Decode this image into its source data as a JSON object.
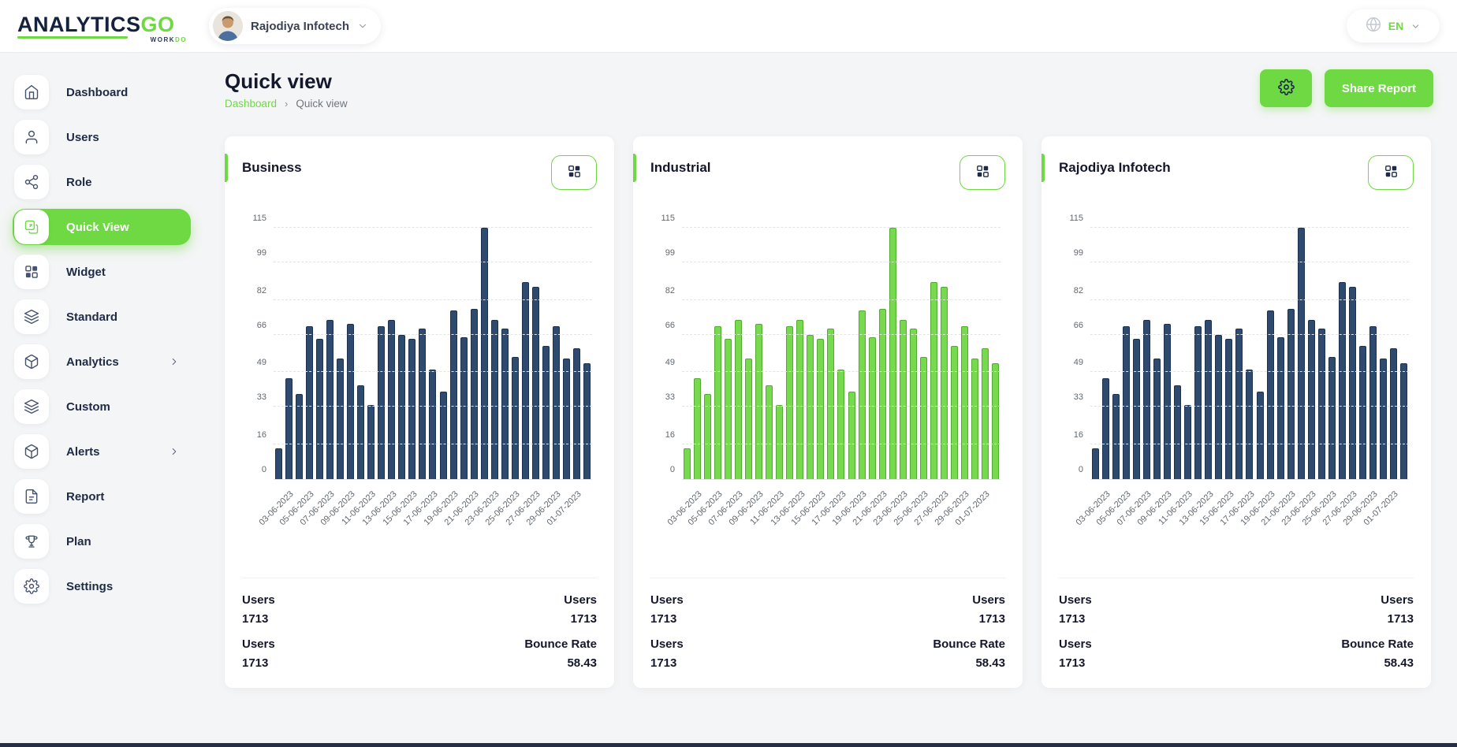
{
  "topbar": {
    "brand": {
      "name_primary": "ANALYTICS",
      "name_accent": "GO",
      "subbrand_primary": "WORK",
      "subbrand_accent": "DO"
    },
    "company_selector": {
      "name": "Rajodiya Infotech"
    },
    "language_selector": {
      "value": "EN"
    }
  },
  "sidebar": {
    "items": [
      {
        "label": "Dashboard",
        "icon": "home-icon",
        "active": false,
        "has_submenu": false
      },
      {
        "label": "Users",
        "icon": "user-icon",
        "active": false,
        "has_submenu": false
      },
      {
        "label": "Role",
        "icon": "share-icon",
        "active": false,
        "has_submenu": false
      },
      {
        "label": "Quick View",
        "icon": "quick-view-icon",
        "active": true,
        "has_submenu": false
      },
      {
        "label": "Widget",
        "icon": "widget-icon",
        "active": false,
        "has_submenu": false
      },
      {
        "label": "Standard",
        "icon": "layers-icon",
        "active": false,
        "has_submenu": false
      },
      {
        "label": "Analytics",
        "icon": "cube-icon",
        "active": false,
        "has_submenu": true
      },
      {
        "label": "Custom",
        "icon": "layers-icon",
        "active": false,
        "has_submenu": false
      },
      {
        "label": "Alerts",
        "icon": "cube-icon",
        "active": false,
        "has_submenu": true
      },
      {
        "label": "Report",
        "icon": "document-icon",
        "active": false,
        "has_submenu": false
      },
      {
        "label": "Plan",
        "icon": "trophy-icon",
        "active": false,
        "has_submenu": false
      },
      {
        "label": "Settings",
        "icon": "gear-icon",
        "active": false,
        "has_submenu": false
      }
    ]
  },
  "page_header": {
    "title": "Quick view",
    "breadcrumb": {
      "parent": "Dashboard",
      "separator": "›",
      "current": "Quick view"
    },
    "share_button_label": "Share Report"
  },
  "cards": [
    {
      "title": "Business",
      "stats": [
        {
          "label": "Users",
          "value": "1713"
        },
        {
          "label": "Users",
          "value": "1713"
        },
        {
          "label": "Users",
          "value": "1713"
        },
        {
          "label": "Bounce Rate",
          "value": "58.43"
        }
      ]
    },
    {
      "title": "Industrial",
      "stats": [
        {
          "label": "Users",
          "value": "1713"
        },
        {
          "label": "Users",
          "value": "1713"
        },
        {
          "label": "Users",
          "value": "1713"
        },
        {
          "label": "Bounce Rate",
          "value": "58.43"
        }
      ]
    },
    {
      "title": "Rajodiya Infotech",
      "stats": [
        {
          "label": "Users",
          "value": "1713"
        },
        {
          "label": "Users",
          "value": "1713"
        },
        {
          "label": "Users",
          "value": "1713"
        },
        {
          "label": "Bounce Rate",
          "value": "58.43"
        }
      ]
    }
  ],
  "chart_data": [
    {
      "type": "bar",
      "title": "Business",
      "categories": [
        "03-06-2023",
        "05-06-2023",
        "07-06-2023",
        "09-06-2023",
        "11-06-2023",
        "13-06-2023",
        "15-06-2023",
        "17-06-2023",
        "19-06-2023",
        "21-06-2023",
        "23-06-2023",
        "25-06-2023",
        "27-06-2023",
        "29-06-2023",
        "01-07-2023"
      ],
      "label_every_other_bar_starting_index": 1,
      "values": [
        14,
        46,
        39,
        70,
        64,
        73,
        55,
        71,
        43,
        34,
        70,
        73,
        66,
        64,
        69,
        50,
        40,
        77,
        65,
        78,
        115,
        73,
        69,
        56,
        90,
        88,
        61,
        70,
        55,
        60,
        53
      ],
      "ylim": [
        0,
        115
      ],
      "yticks": [
        0,
        16,
        33,
        49,
        66,
        82,
        99,
        115
      ],
      "grid": "dashed-horizontal",
      "legend": "none",
      "bar_color": "#2e4a6e",
      "bar_border": "#1c3050"
    },
    {
      "type": "bar",
      "title": "Industrial",
      "categories": [
        "03-06-2023",
        "05-06-2023",
        "07-06-2023",
        "09-06-2023",
        "11-06-2023",
        "13-06-2023",
        "15-06-2023",
        "17-06-2023",
        "19-06-2023",
        "21-06-2023",
        "23-06-2023",
        "25-06-2023",
        "27-06-2023",
        "29-06-2023",
        "01-07-2023"
      ],
      "label_every_other_bar_starting_index": 1,
      "values": [
        14,
        46,
        39,
        70,
        64,
        73,
        55,
        71,
        43,
        34,
        70,
        73,
        66,
        64,
        69,
        50,
        40,
        77,
        65,
        78,
        115,
        73,
        69,
        56,
        90,
        88,
        61,
        70,
        55,
        60,
        53
      ],
      "ylim": [
        0,
        115
      ],
      "yticks": [
        0,
        16,
        33,
        49,
        66,
        82,
        99,
        115
      ],
      "grid": "dashed-horizontal",
      "legend": "none",
      "bar_color": "#77d94e",
      "bar_border": "#54ab31"
    },
    {
      "type": "bar",
      "title": "Rajodiya Infotech",
      "categories": [
        "03-06-2023",
        "05-06-2023",
        "07-06-2023",
        "09-06-2023",
        "11-06-2023",
        "13-06-2023",
        "15-06-2023",
        "17-06-2023",
        "19-06-2023",
        "21-06-2023",
        "23-06-2023",
        "25-06-2023",
        "27-06-2023",
        "29-06-2023",
        "01-07-2023"
      ],
      "label_every_other_bar_starting_index": 1,
      "values": [
        14,
        46,
        39,
        70,
        64,
        73,
        55,
        71,
        43,
        34,
        70,
        73,
        66,
        64,
        69,
        50,
        40,
        77,
        65,
        78,
        115,
        73,
        69,
        56,
        90,
        88,
        61,
        70,
        55,
        60,
        53
      ],
      "ylim": [
        0,
        115
      ],
      "yticks": [
        0,
        16,
        33,
        49,
        66,
        82,
        99,
        115
      ],
      "grid": "dashed-horizontal",
      "legend": "none",
      "bar_color": "#2e4a6e",
      "bar_border": "#1c3050"
    }
  ],
  "colors": {
    "accent_green": "#6fd943",
    "navy": "#1f2b46",
    "background": "#f4f5f6"
  }
}
